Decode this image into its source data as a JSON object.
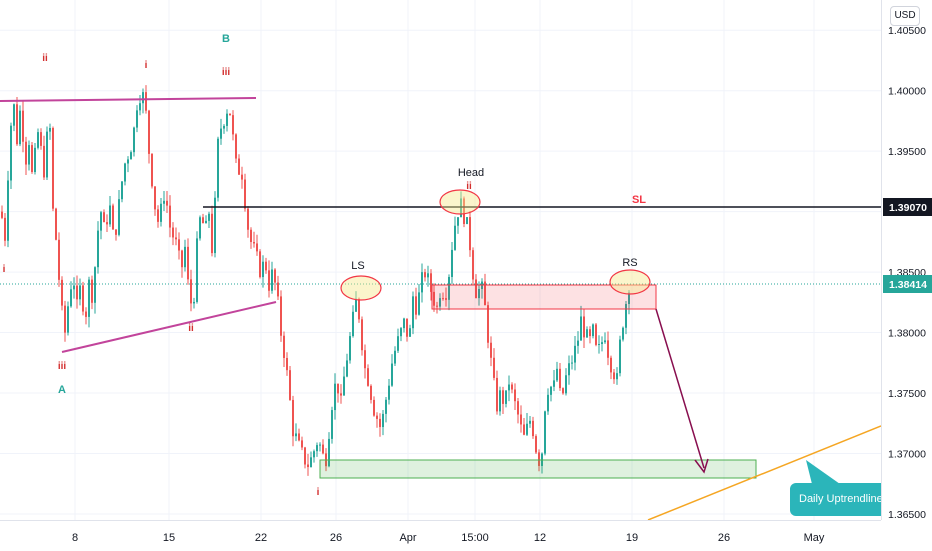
{
  "currency": "USD",
  "colors": {
    "up": "#26a69a",
    "down": "#ef5350",
    "grid": "#f0f3fa",
    "wedge": "#c2449b",
    "sl_line": "#131722",
    "green_zone": "#4caf50",
    "red_zone": "#f23645",
    "ellipse": "#f7e98e",
    "trendline": "#f5a623",
    "arrow": "#880e4f",
    "wave_red": "#d32f2f",
    "wave_teal": "#26a69a",
    "callout": "#2bb5ba"
  },
  "labels": {
    "head": "Head",
    "ls": "LS",
    "rs": "RS",
    "sl": "SL",
    "wave_A": "A",
    "wave_B": "B",
    "callout": "Daily Uptrendline"
  },
  "wave_marks": [
    {
      "text": "ii"
    },
    {
      "text": "i"
    },
    {
      "text": "iii"
    },
    {
      "text": "i"
    },
    {
      "text": "iii"
    },
    {
      "text": "ii"
    },
    {
      "text": "ii"
    },
    {
      "text": "i"
    }
  ],
  "price_axis": {
    "ticks": [
      "1.40500",
      "1.40000",
      "1.39500",
      "1.39000",
      "1.38500",
      "1.38000",
      "1.37500",
      "1.37000",
      "1.36500"
    ],
    "sl_tag": "1.39070",
    "current_tag": "1.38414"
  },
  "time_axis": {
    "ticks": [
      "8",
      "15",
      "22",
      "26",
      "Apr",
      "15:00",
      "12",
      "19",
      "26",
      "May"
    ]
  },
  "chart_data": {
    "type": "candlestick",
    "instrument_currency": "USD",
    "ylim": [
      1.3645,
      1.4075
    ],
    "yticks": [
      1.405,
      1.4,
      1.395,
      1.39,
      1.385,
      1.38,
      1.375,
      1.37,
      1.365
    ],
    "xticks": [
      "8",
      "15",
      "22",
      "26",
      "Apr",
      "15:00",
      "12",
      "19",
      "26",
      "May"
    ],
    "stop_loss": 1.3907,
    "current_price": 1.38414,
    "resistance_zone": [
      1.382,
      1.3842
    ],
    "support_zone": [
      1.3673,
      1.3688
    ],
    "annotations": [
      "Head",
      "LS",
      "RS",
      "SL",
      "A",
      "B",
      "Daily Uptrendline"
    ],
    "price_path": [
      [
        0,
        1.39
      ],
      [
        4,
        1.388
      ],
      [
        8,
        1.395
      ],
      [
        12,
        1.3995
      ],
      [
        16,
        1.396
      ],
      [
        20,
        1.399
      ],
      [
        24,
        1.394
      ],
      [
        28,
        1.396
      ],
      [
        32,
        1.392
      ],
      [
        36,
        1.397
      ],
      [
        40,
        1.395
      ],
      [
        44,
        1.393
      ],
      [
        48,
        1.399
      ],
      [
        52,
        1.39
      ],
      [
        56,
        1.387
      ],
      [
        60,
        1.382
      ],
      [
        64,
        1.38
      ],
      [
        68,
        1.383
      ],
      [
        72,
        1.385
      ],
      [
        76,
        1.382
      ],
      [
        80,
        1.384
      ],
      [
        84,
        1.381
      ],
      [
        88,
        1.384
      ],
      [
        92,
        1.383
      ],
      [
        96,
        1.388
      ],
      [
        100,
        1.39
      ],
      [
        104,
        1.388
      ],
      [
        108,
        1.391
      ],
      [
        112,
        1.388
      ],
      [
        116,
        1.389
      ],
      [
        120,
        1.392
      ],
      [
        124,
        1.394
      ],
      [
        128,
        1.395
      ],
      [
        132,
        1.396
      ],
      [
        136,
        1.399
      ],
      [
        140,
        1.4
      ],
      [
        144,
        1.399
      ],
      [
        148,
        1.395
      ],
      [
        152,
        1.392
      ],
      [
        156,
        1.389
      ],
      [
        160,
        1.39
      ],
      [
        164,
        1.392
      ],
      [
        168,
        1.389
      ],
      [
        172,
        1.388
      ],
      [
        176,
        1.387
      ],
      [
        180,
        1.385
      ],
      [
        184,
        1.387
      ],
      [
        188,
        1.383
      ],
      [
        192,
        1.382
      ],
      [
        196,
        1.387
      ],
      [
        200,
        1.39
      ],
      [
        204,
        1.388
      ],
      [
        208,
        1.39
      ],
      [
        212,
        1.386
      ],
      [
        216,
        1.395
      ],
      [
        220,
        1.397
      ],
      [
        224,
        1.398
      ],
      [
        228,
        1.399
      ],
      [
        232,
        1.396
      ],
      [
        236,
        1.393
      ],
      [
        240,
        1.394
      ],
      [
        244,
        1.391
      ],
      [
        248,
        1.388
      ],
      [
        252,
        1.387
      ],
      [
        256,
        1.386
      ],
      [
        260,
        1.385
      ],
      [
        264,
        1.386
      ],
      [
        268,
        1.384
      ],
      [
        272,
        1.385
      ],
      [
        276,
        1.383
      ],
      [
        280,
        1.38
      ],
      [
        284,
        1.378
      ],
      [
        288,
        1.375
      ],
      [
        292,
        1.372
      ],
      [
        296,
        1.371
      ],
      [
        300,
        1.37
      ],
      [
        304,
        1.3695
      ],
      [
        308,
        1.369
      ],
      [
        312,
        1.37
      ],
      [
        316,
        1.371
      ],
      [
        320,
        1.3705
      ],
      [
        324,
        1.369
      ],
      [
        328,
        1.372
      ],
      [
        332,
        1.375
      ],
      [
        336,
        1.376
      ],
      [
        340,
        1.374
      ],
      [
        344,
        1.377
      ],
      [
        348,
        1.379
      ],
      [
        352,
        1.381
      ],
      [
        356,
        1.383
      ],
      [
        360,
        1.38
      ],
      [
        364,
        1.377
      ],
      [
        368,
        1.376
      ],
      [
        372,
        1.374
      ],
      [
        376,
        1.373
      ],
      [
        380,
        1.372
      ],
      [
        384,
        1.374
      ],
      [
        388,
        1.376
      ],
      [
        392,
        1.378
      ],
      [
        396,
        1.379
      ],
      [
        400,
        1.38
      ],
      [
        404,
        1.381
      ],
      [
        408,
        1.379
      ],
      [
        412,
        1.383
      ],
      [
        416,
        1.382
      ],
      [
        420,
        1.384
      ],
      [
        424,
        1.385
      ],
      [
        428,
        1.384
      ],
      [
        432,
        1.383
      ],
      [
        436,
        1.382
      ],
      [
        440,
        1.384
      ],
      [
        444,
        1.383
      ],
      [
        448,
        1.385
      ],
      [
        452,
        1.388
      ],
      [
        456,
        1.39
      ],
      [
        460,
        1.3905
      ],
      [
        464,
        1.3895
      ],
      [
        468,
        1.388
      ],
      [
        472,
        1.385
      ],
      [
        476,
        1.383
      ],
      [
        480,
        1.384
      ],
      [
        484,
        1.382
      ],
      [
        488,
        1.379
      ],
      [
        492,
        1.376
      ],
      [
        496,
        1.374
      ],
      [
        500,
        1.375
      ],
      [
        504,
        1.374
      ],
      [
        508,
        1.376
      ],
      [
        512,
        1.3745
      ],
      [
        516,
        1.3735
      ],
      [
        520,
        1.372
      ],
      [
        524,
        1.371
      ],
      [
        528,
        1.373
      ],
      [
        532,
        1.372
      ],
      [
        536,
        1.37
      ],
      [
        540,
        1.369
      ],
      [
        544,
        1.374
      ],
      [
        548,
        1.376
      ],
      [
        552,
        1.375
      ],
      [
        556,
        1.377
      ],
      [
        560,
        1.374
      ],
      [
        564,
        1.376
      ],
      [
        568,
        1.377
      ],
      [
        572,
        1.378
      ],
      [
        576,
        1.379
      ],
      [
        580,
        1.381
      ],
      [
        584,
        1.38
      ],
      [
        588,
        1.379
      ],
      [
        592,
        1.38
      ],
      [
        596,
        1.378
      ],
      [
        600,
        1.379
      ],
      [
        604,
        1.38
      ],
      [
        608,
        1.378
      ],
      [
        612,
        1.377
      ],
      [
        616,
        1.376
      ],
      [
        620,
        1.38
      ],
      [
        624,
        1.382
      ],
      [
        628,
        1.3841
      ]
    ]
  }
}
